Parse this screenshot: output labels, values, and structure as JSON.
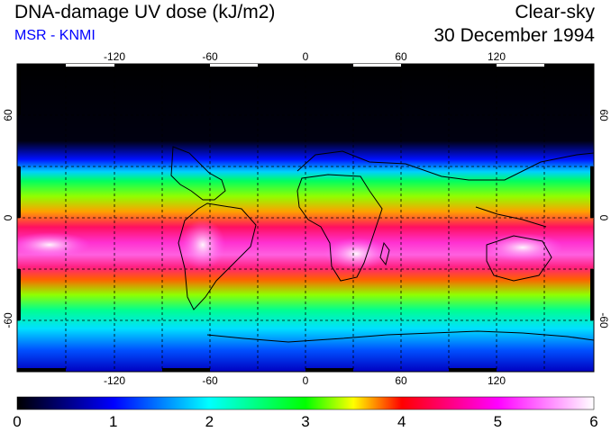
{
  "header": {
    "title": "DNA-damage UV dose (kJ/m2)",
    "subtitle": "MSR - KNMI",
    "condition": "Clear-sky",
    "date": "30 December 1994"
  },
  "map": {
    "lon_ticks": [
      "-120",
      "-60",
      "0",
      "60",
      "120"
    ],
    "lat_ticks": [
      "60",
      "0",
      "-60"
    ],
    "colorbar": {
      "min": 0,
      "max": 6,
      "ticks": [
        "0",
        "1",
        "2",
        "3",
        "4",
        "5",
        "6"
      ],
      "colors": [
        "#000000",
        "#0000ff",
        "#00ffff",
        "#00ff00",
        "#ffff00",
        "#ff0000",
        "#ff00ff",
        "#ffffff"
      ]
    }
  }
}
